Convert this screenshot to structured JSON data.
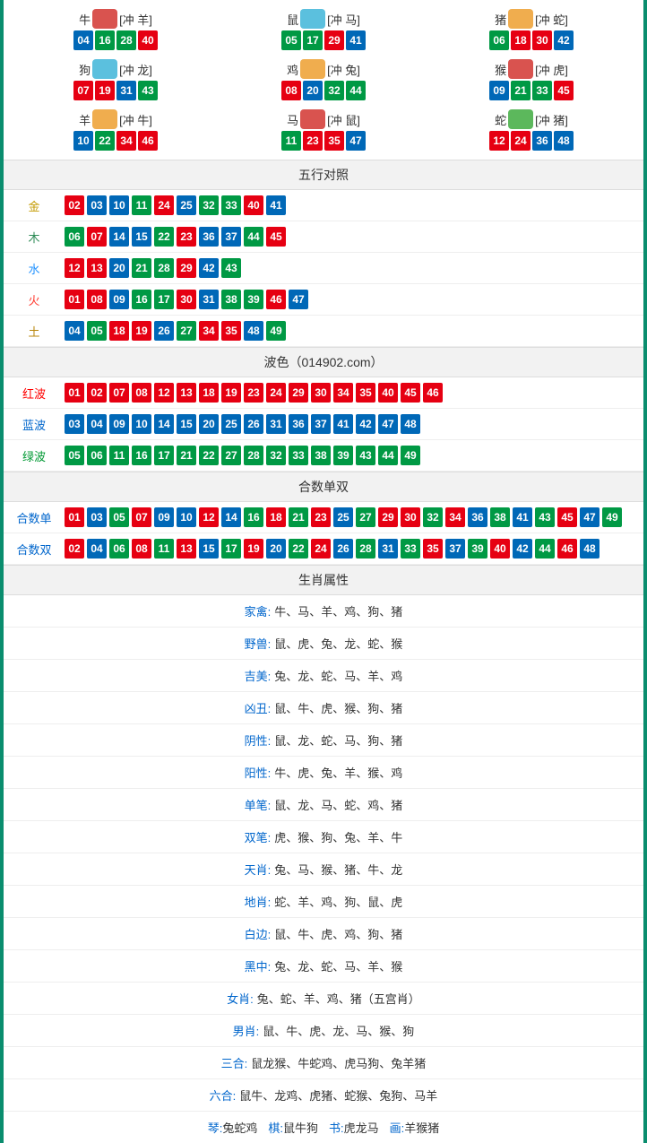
{
  "colors": {
    "red": "#e60012",
    "blue": "#0068b7",
    "green": "#009944",
    "border": "#0a8d6e",
    "gold": "#c49a00",
    "wood": "#2e8b57",
    "water": "#1e90ff",
    "fire": "#ff3b30",
    "earth": "#b8860b",
    "redText": "#ff0000",
    "blueText": "#0066cc",
    "greenText": "#009933",
    "black": "#333333"
  },
  "ballColorMap": {
    "red": [
      "01",
      "02",
      "07",
      "08",
      "12",
      "13",
      "18",
      "19",
      "23",
      "24",
      "29",
      "30",
      "34",
      "35",
      "40",
      "45",
      "46"
    ],
    "blue": [
      "03",
      "04",
      "09",
      "10",
      "14",
      "15",
      "20",
      "25",
      "26",
      "31",
      "36",
      "37",
      "41",
      "42",
      "47",
      "48"
    ],
    "green": [
      "05",
      "06",
      "11",
      "16",
      "17",
      "21",
      "22",
      "27",
      "28",
      "32",
      "33",
      "38",
      "39",
      "43",
      "44",
      "49"
    ]
  },
  "zodiacIconColors": {
    "牛": "#d9534f",
    "鼠": "#5bc0de",
    "猪": "#f0ad4e",
    "狗": "#5bc0de",
    "鸡": "#f0ad4e",
    "猴": "#d9534f",
    "羊": "#f0ad4e",
    "马": "#d9534f",
    "蛇": "#5cb85c"
  },
  "zodiac": [
    {
      "name": "牛",
      "clash": "[冲 羊]",
      "nums": [
        "04",
        "16",
        "28",
        "40"
      ]
    },
    {
      "name": "鼠",
      "clash": "[冲 马]",
      "nums": [
        "05",
        "17",
        "29",
        "41"
      ]
    },
    {
      "name": "猪",
      "clash": "[冲 蛇]",
      "nums": [
        "06",
        "18",
        "30",
        "42"
      ]
    },
    {
      "name": "狗",
      "clash": "[冲 龙]",
      "nums": [
        "07",
        "19",
        "31",
        "43"
      ]
    },
    {
      "name": "鸡",
      "clash": "[冲 兔]",
      "nums": [
        "08",
        "20",
        "32",
        "44"
      ]
    },
    {
      "name": "猴",
      "clash": "[冲 虎]",
      "nums": [
        "09",
        "21",
        "33",
        "45"
      ]
    },
    {
      "name": "羊",
      "clash": "[冲 牛]",
      "nums": [
        "10",
        "22",
        "34",
        "46"
      ]
    },
    {
      "name": "马",
      "clash": "[冲 鼠]",
      "nums": [
        "11",
        "23",
        "35",
        "47"
      ]
    },
    {
      "name": "蛇",
      "clash": "[冲 猪]",
      "nums": [
        "12",
        "24",
        "36",
        "48"
      ]
    }
  ],
  "wuxing": {
    "title": "五行对照",
    "rows": [
      {
        "label": "金",
        "color": "#c49a00",
        "nums": [
          "02",
          "03",
          "10",
          "11",
          "24",
          "25",
          "32",
          "33",
          "40",
          "41"
        ]
      },
      {
        "label": "木",
        "color": "#2e8b57",
        "nums": [
          "06",
          "07",
          "14",
          "15",
          "22",
          "23",
          "36",
          "37",
          "44",
          "45"
        ]
      },
      {
        "label": "水",
        "color": "#1e90ff",
        "nums": [
          "12",
          "13",
          "20",
          "21",
          "28",
          "29",
          "42",
          "43"
        ]
      },
      {
        "label": "火",
        "color": "#ff3b30",
        "nums": [
          "01",
          "08",
          "09",
          "16",
          "17",
          "30",
          "31",
          "38",
          "39",
          "46",
          "47"
        ]
      },
      {
        "label": "土",
        "color": "#b8860b",
        "nums": [
          "04",
          "05",
          "18",
          "19",
          "26",
          "27",
          "34",
          "35",
          "48",
          "49"
        ]
      }
    ]
  },
  "bose": {
    "title": "波色（014902.com）",
    "rows": [
      {
        "label": "红波",
        "color": "#ff0000",
        "nums": [
          "01",
          "02",
          "07",
          "08",
          "12",
          "13",
          "18",
          "19",
          "23",
          "24",
          "29",
          "30",
          "34",
          "35",
          "40",
          "45",
          "46"
        ]
      },
      {
        "label": "蓝波",
        "color": "#0066cc",
        "nums": [
          "03",
          "04",
          "09",
          "10",
          "14",
          "15",
          "20",
          "25",
          "26",
          "31",
          "36",
          "37",
          "41",
          "42",
          "47",
          "48"
        ]
      },
      {
        "label": "绿波",
        "color": "#009933",
        "nums": [
          "05",
          "06",
          "11",
          "16",
          "17",
          "21",
          "22",
          "27",
          "28",
          "32",
          "33",
          "38",
          "39",
          "43",
          "44",
          "49"
        ]
      }
    ]
  },
  "heshu": {
    "title": "合数单双",
    "rows": [
      {
        "label": "合数单",
        "color": "#0066cc",
        "nums": [
          "01",
          "03",
          "05",
          "07",
          "09",
          "10",
          "12",
          "14",
          "16",
          "18",
          "21",
          "23",
          "25",
          "27",
          "29",
          "30",
          "32",
          "34",
          "36",
          "38",
          "41",
          "43",
          "45",
          "47",
          "49"
        ]
      },
      {
        "label": "合数双",
        "color": "#0066cc",
        "nums": [
          "02",
          "04",
          "06",
          "08",
          "11",
          "13",
          "15",
          "17",
          "19",
          "20",
          "22",
          "24",
          "26",
          "28",
          "31",
          "33",
          "35",
          "37",
          "39",
          "40",
          "42",
          "44",
          "46",
          "48"
        ]
      }
    ]
  },
  "attr": {
    "title": "生肖属性",
    "rows": [
      {
        "label": "家禽:",
        "color": "#0066cc",
        "text": "牛、马、羊、鸡、狗、猪"
      },
      {
        "label": "野兽:",
        "color": "#0066cc",
        "text": "鼠、虎、兔、龙、蛇、猴"
      },
      {
        "label": "吉美:",
        "color": "#0066cc",
        "text": "兔、龙、蛇、马、羊、鸡"
      },
      {
        "label": "凶丑:",
        "color": "#0066cc",
        "text": "鼠、牛、虎、猴、狗、猪"
      },
      {
        "label": "阴性:",
        "color": "#0066cc",
        "text": "鼠、龙、蛇、马、狗、猪"
      },
      {
        "label": "阳性:",
        "color": "#0066cc",
        "text": "牛、虎、兔、羊、猴、鸡"
      },
      {
        "label": "单笔:",
        "color": "#0066cc",
        "text": "鼠、龙、马、蛇、鸡、猪"
      },
      {
        "label": "双笔:",
        "color": "#0066cc",
        "text": "虎、猴、狗、兔、羊、牛"
      },
      {
        "label": "天肖:",
        "color": "#0066cc",
        "text": "兔、马、猴、猪、牛、龙"
      },
      {
        "label": "地肖:",
        "color": "#0066cc",
        "text": "蛇、羊、鸡、狗、鼠、虎"
      },
      {
        "label": "白边:",
        "color": "#0066cc",
        "text": "鼠、牛、虎、鸡、狗、猪"
      },
      {
        "label": "黑中:",
        "color": "#0066cc",
        "text": "兔、龙、蛇、马、羊、猴"
      },
      {
        "label": "女肖:",
        "color": "#0066cc",
        "text": "兔、蛇、羊、鸡、猪（五宫肖）"
      },
      {
        "label": "男肖:",
        "color": "#0066cc",
        "text": "鼠、牛、虎、龙、马、猴、狗"
      },
      {
        "label": "三合:",
        "color": "#0066cc",
        "text": "鼠龙猴、牛蛇鸡、虎马狗、兔羊猪"
      },
      {
        "label": "六合:",
        "color": "#0066cc",
        "text": "鼠牛、龙鸡、虎猪、蛇猴、兔狗、马羊"
      }
    ]
  },
  "lastRow": [
    {
      "label": "琴:",
      "color": "#0066cc",
      "text": "兔蛇鸡"
    },
    {
      "label": "棋:",
      "color": "#0066cc",
      "text": "鼠牛狗"
    },
    {
      "label": "书:",
      "color": "#0066cc",
      "text": "虎龙马"
    },
    {
      "label": "画:",
      "color": "#0066cc",
      "text": "羊猴猪"
    }
  ]
}
